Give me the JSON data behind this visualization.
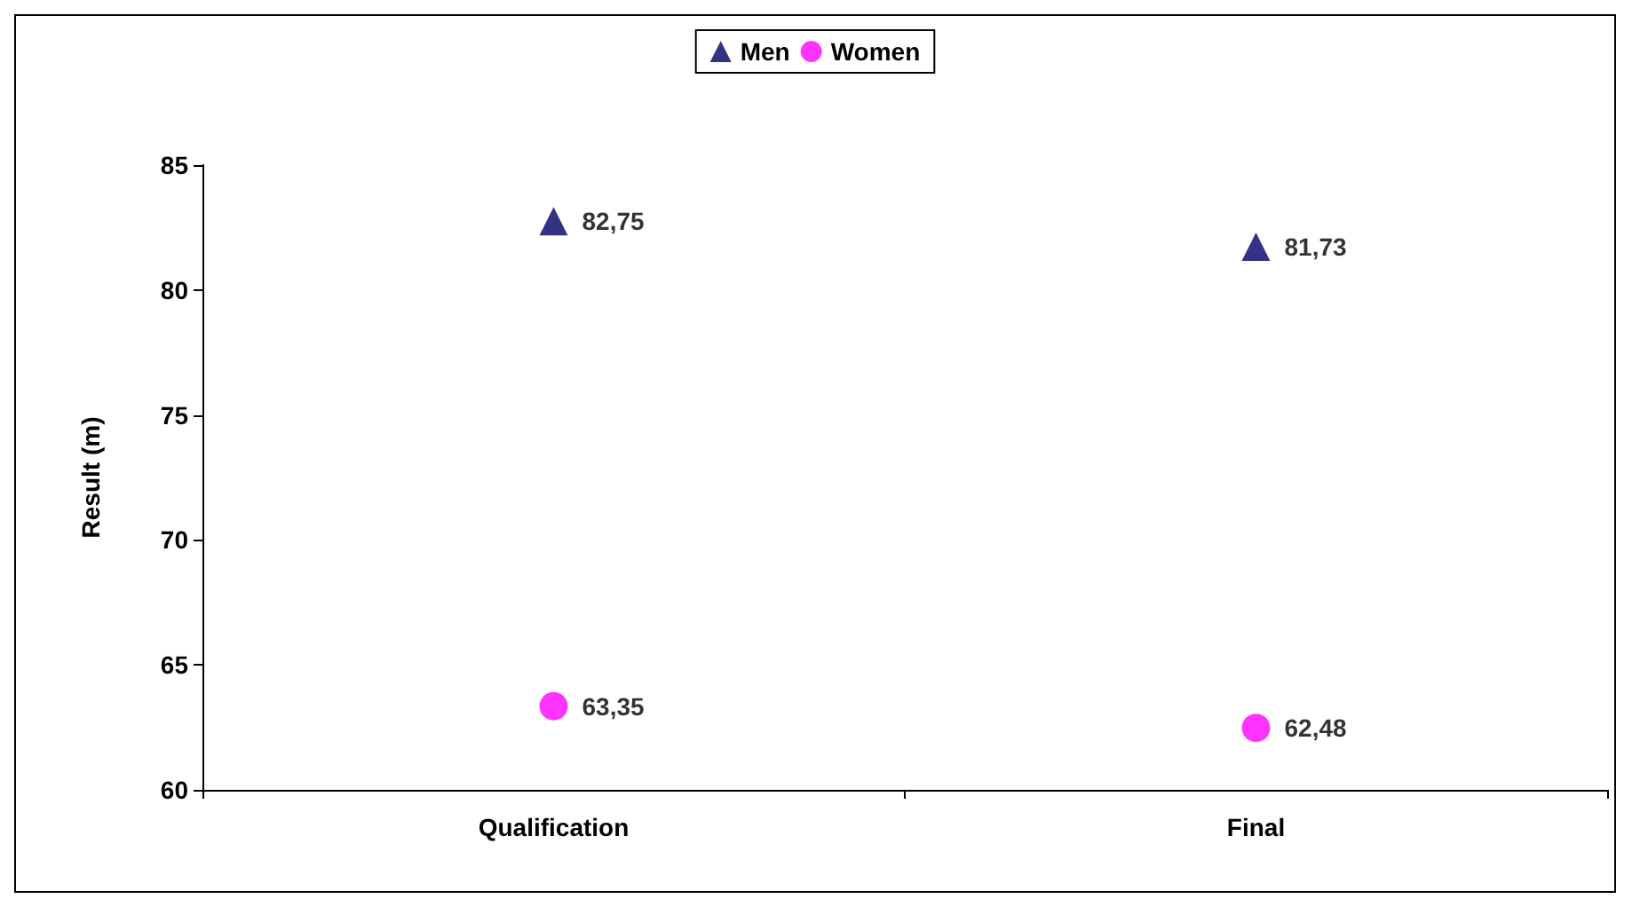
{
  "chart_data": {
    "type": "scatter",
    "ylabel": "Result (m)",
    "categories": [
      "Qualification",
      "Final"
    ],
    "series": [
      {
        "name": "Men",
        "color": "#000066",
        "marker": "triangle",
        "values": [
          82.75,
          81.73
        ],
        "value_labels": [
          "82,75",
          "81,73"
        ]
      },
      {
        "name": "Women",
        "color": "#ff00ff",
        "marker": "circle",
        "values": [
          63.35,
          62.48
        ],
        "value_labels": [
          "63,35",
          "62,48"
        ]
      }
    ],
    "ylim": [
      60,
      85
    ],
    "yticks": [
      60,
      65,
      70,
      75,
      80,
      85
    ],
    "grid": false,
    "legend": "top"
  }
}
